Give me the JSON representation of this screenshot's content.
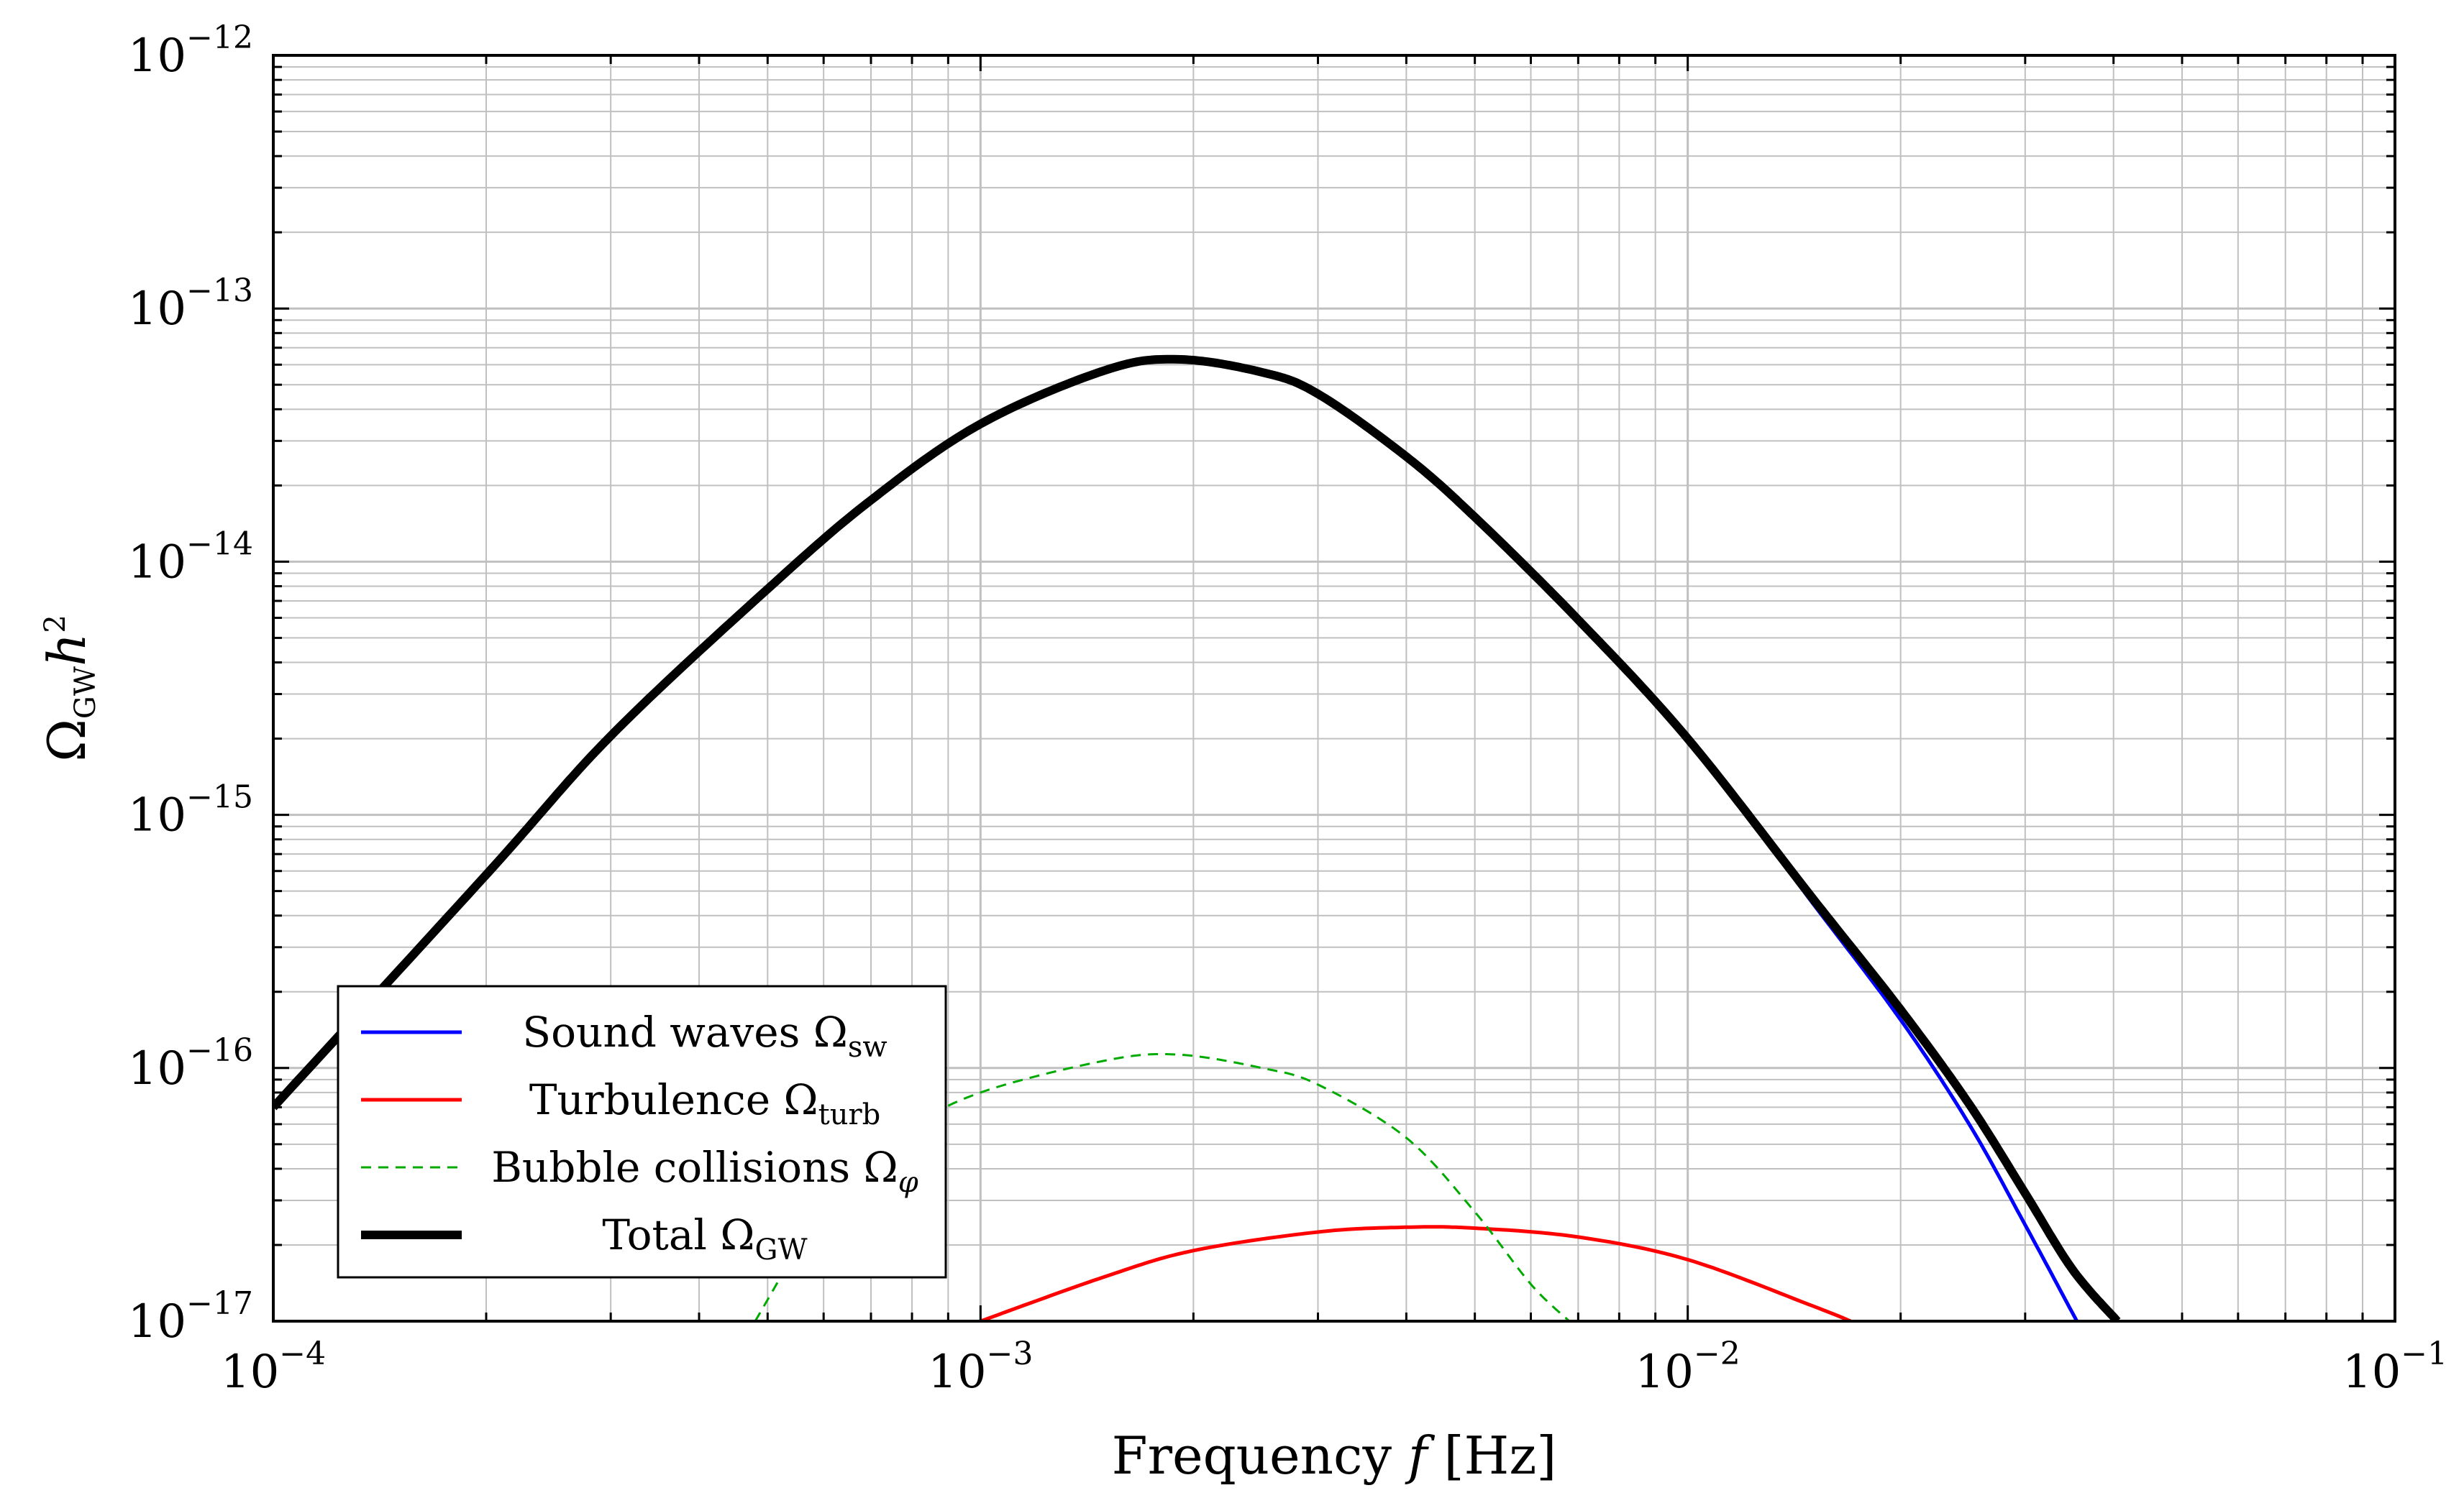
{
  "chart_data": {
    "type": "line",
    "title": "",
    "xlabel": {
      "pre": "Frequency ",
      "var": "f",
      "post": " [Hz]"
    },
    "ylabel": {
      "main": "Ω",
      "sub": "GW",
      "var": "h",
      "sup": "2"
    },
    "xscale": "log",
    "yscale": "log",
    "xlim": [
      0.0001,
      0.1
    ],
    "ylim": [
      1e-17,
      1e-12
    ],
    "grid": true,
    "legend_position": "bottom-left",
    "x_ticks": [
      {
        "value": 0.0001,
        "base": "10",
        "exp": "−4"
      },
      {
        "value": 0.001,
        "base": "10",
        "exp": "−3"
      },
      {
        "value": 0.01,
        "base": "10",
        "exp": "−2"
      },
      {
        "value": 0.1,
        "base": "10",
        "exp": "−1"
      }
    ],
    "y_ticks": [
      {
        "value": 1e-12,
        "base": "10",
        "exp": "−12"
      },
      {
        "value": 1e-13,
        "base": "10",
        "exp": "−13"
      },
      {
        "value": 1e-14,
        "base": "10",
        "exp": "−14"
      },
      {
        "value": 1e-15,
        "base": "10",
        "exp": "−15"
      },
      {
        "value": 1e-16,
        "base": "10",
        "exp": "−16"
      },
      {
        "value": 1e-17,
        "base": "10",
        "exp": "−17"
      }
    ],
    "series": [
      {
        "name": "Sound waves Ω",
        "sub": "sw",
        "color": "#0000ff",
        "width": 5,
        "dash": "",
        "points": [
          [
            0.0001,
            7e-17
          ],
          [
            0.0002,
            5.8e-16
          ],
          [
            0.0003,
            2.05e-15
          ],
          [
            0.0005,
            7.8e-15
          ],
          [
            0.0007,
            1.75e-14
          ],
          [
            0.001,
            3.5e-14
          ],
          [
            0.0015,
            5.7e-14
          ],
          [
            0.0019,
            6.3e-14
          ],
          [
            0.0025,
            5.6e-14
          ],
          [
            0.003,
            4.6e-14
          ],
          [
            0.004,
            2.6e-14
          ],
          [
            0.005,
            1.5e-14
          ],
          [
            0.007,
            5.9e-15
          ],
          [
            0.01,
            2e-15
          ],
          [
            0.015,
            4.5e-16
          ],
          [
            0.02,
            1.55e-16
          ],
          [
            0.025,
            6e-17
          ],
          [
            0.03,
            2.4e-17
          ],
          [
            0.0355,
            1e-17
          ]
        ]
      },
      {
        "name": "Turbulence Ω",
        "sub": "turb",
        "color": "#ff0000",
        "width": 5,
        "dash": "",
        "points": [
          [
            0.001,
            1e-17
          ],
          [
            0.0015,
            1.5e-17
          ],
          [
            0.002,
            1.9e-17
          ],
          [
            0.003,
            2.25e-17
          ],
          [
            0.004,
            2.35e-17
          ],
          [
            0.005,
            2.33e-17
          ],
          [
            0.007,
            2.15e-17
          ],
          [
            0.01,
            1.75e-17
          ],
          [
            0.015,
            1.15e-17
          ],
          [
            0.017,
            1e-17
          ]
        ]
      },
      {
        "name": "Bubble collisions Ω",
        "sub": "φ",
        "color": "#00aa00",
        "width": 3,
        "dash": "14,10",
        "points": [
          [
            0.00048,
            1e-17
          ],
          [
            0.0006,
            2.7e-17
          ],
          [
            0.0008,
            5.7e-17
          ],
          [
            0.001,
            8e-17
          ],
          [
            0.0015,
            1.07e-16
          ],
          [
            0.0019,
            1.13e-16
          ],
          [
            0.0025,
            1e-16
          ],
          [
            0.003,
            8.6e-17
          ],
          [
            0.004,
            5.3e-17
          ],
          [
            0.005,
            2.7e-17
          ],
          [
            0.006,
            1.4e-17
          ],
          [
            0.0068,
            1e-17
          ]
        ]
      },
      {
        "name": "Total Ω",
        "sub": "GW",
        "color": "#000000",
        "width": 12,
        "dash": "",
        "points": [
          [
            0.0001,
            7e-17
          ],
          [
            0.0002,
            5.8e-16
          ],
          [
            0.0003,
            2.05e-15
          ],
          [
            0.0005,
            7.8e-15
          ],
          [
            0.0007,
            1.75e-14
          ],
          [
            0.001,
            3.5e-14
          ],
          [
            0.0015,
            5.7e-14
          ],
          [
            0.0019,
            6.3e-14
          ],
          [
            0.0025,
            5.6e-14
          ],
          [
            0.003,
            4.6e-14
          ],
          [
            0.004,
            2.6e-14
          ],
          [
            0.005,
            1.5e-14
          ],
          [
            0.007,
            5.9e-15
          ],
          [
            0.01,
            2e-15
          ],
          [
            0.015,
            4.7e-16
          ],
          [
            0.02,
            1.7e-16
          ],
          [
            0.025,
            7.2e-17
          ],
          [
            0.03,
            3.2e-17
          ],
          [
            0.035,
            1.6e-17
          ],
          [
            0.0405,
            1e-17
          ]
        ]
      }
    ]
  }
}
